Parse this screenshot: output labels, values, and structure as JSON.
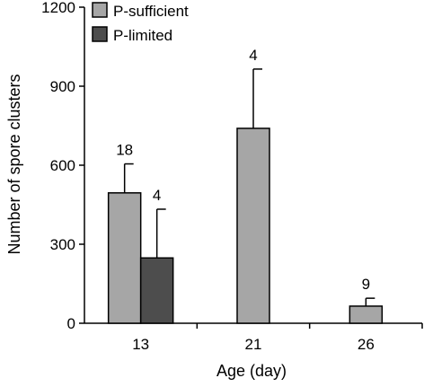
{
  "chart_data": {
    "type": "bar",
    "title": "",
    "xlabel": "Age (day)",
    "ylabel": "Number of spore clusters",
    "ylim": [
      0,
      1200
    ],
    "yticks": [
      0,
      300,
      600,
      900,
      1200
    ],
    "categories": [
      "13",
      "21",
      "26"
    ],
    "legend_position": "top-left",
    "grid": false,
    "series": [
      {
        "name": "P-sufficient",
        "color": "#a6a6a6",
        "values": [
          495,
          740,
          65
        ],
        "errors": [
          110,
          225,
          30
        ],
        "n": [
          "18",
          "4",
          "9"
        ]
      },
      {
        "name": "P-limited",
        "color": "#4d4d4d",
        "values": [
          248,
          null,
          null
        ],
        "errors": [
          185,
          null,
          null
        ],
        "n": [
          "4",
          null,
          null
        ]
      }
    ]
  }
}
